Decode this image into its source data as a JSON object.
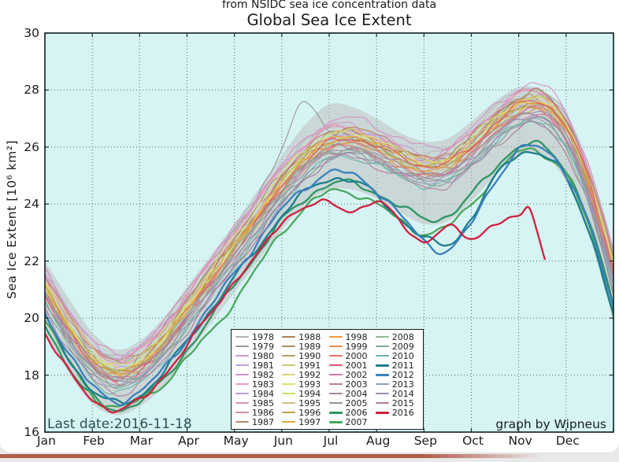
{
  "chart_data": {
    "type": "line",
    "title": "Global Sea Ice Extent",
    "subtitle": "from NSIDC sea ice concentration data",
    "ylabel": "Sea Ice Extent [10⁶ km²]",
    "ylim": [
      16,
      30
    ],
    "yticks": [
      16,
      18,
      20,
      22,
      24,
      26,
      28,
      30
    ],
    "xticklabels": [
      "Jan",
      "Feb",
      "Mar",
      "Apr",
      "May",
      "Jun",
      "Jul",
      "Aug",
      "Sep",
      "Oct",
      "Nov",
      "Dec"
    ],
    "grid": "dotted",
    "legend_position": "lower-center",
    "plot_bg": "#d7f4f4",
    "frame_color": "#1c2b2b",
    "annotations": {
      "last_date": "Last date:2016-11-18",
      "credit": "graph by Wipneus"
    },
    "sample_x": [
      0,
      0.5,
      1,
      1.5,
      2,
      2.5,
      3,
      3.5,
      4,
      4.5,
      5,
      5.5,
      6,
      6.5,
      7,
      7.5,
      8,
      8.5,
      9,
      9.5,
      10,
      10.5,
      11,
      11.5,
      12
    ],
    "base_cycle": [
      20.7,
      19.3,
      18.2,
      17.7,
      18.0,
      18.8,
      19.9,
      21.0,
      22.1,
      23.2,
      24.3,
      25.2,
      25.8,
      25.9,
      25.6,
      25.2,
      24.9,
      25.0,
      25.6,
      26.4,
      27.0,
      27.1,
      26.2,
      24.2,
      21.3
    ],
    "band": {
      "color": "#bfbfbf",
      "opacity": 0.55,
      "upper": [
        22.0,
        20.7,
        19.5,
        18.9,
        19.2,
        20.0,
        21.1,
        22.2,
        23.3,
        24.5,
        25.7,
        26.8,
        27.5,
        27.4,
        27.0,
        26.5,
        26.2,
        26.3,
        26.9,
        27.6,
        28.1,
        28.0,
        27.2,
        25.3,
        22.5
      ],
      "lower": [
        19.5,
        18.1,
        17.0,
        16.6,
        16.9,
        17.6,
        18.7,
        19.8,
        20.9,
        22.0,
        23.1,
        24.0,
        24.5,
        24.5,
        24.2,
        23.7,
        23.3,
        23.4,
        24.1,
        25.0,
        25.7,
        25.7,
        24.8,
        22.8,
        19.9
      ]
    },
    "series": [
      {
        "year": "1978",
        "color": "#b5b5b5",
        "bold": false,
        "offset": 1.0
      },
      {
        "year": "1979",
        "color": "#9a9a9a",
        "bold": false,
        "values": [
          21.4,
          20.1,
          18.9,
          18.5,
          18.8,
          19.6,
          20.7,
          21.8,
          23.0,
          24.4,
          25.9,
          27.6,
          26.6,
          26.2,
          26.0,
          25.6,
          25.4,
          25.5,
          26.1,
          26.9,
          27.4,
          27.4,
          26.6,
          24.6,
          21.9
        ]
      },
      {
        "year": "1980",
        "color": "#cf9ccf",
        "bold": false,
        "offset": 0.9
      },
      {
        "year": "1981",
        "color": "#c0a4da",
        "bold": false,
        "offset": 0.7
      },
      {
        "year": "1982",
        "color": "#d592c6",
        "bold": false,
        "offset": 1.0
      },
      {
        "year": "1983",
        "color": "#ef99cd",
        "bold": false,
        "offset": 0.8
      },
      {
        "year": "1984",
        "color": "#b99cd4",
        "bold": false,
        "offset": 0.6
      },
      {
        "year": "1985",
        "color": "#dc92b6",
        "bold": false,
        "offset": 0.7
      },
      {
        "year": "1986",
        "color": "#d892a2",
        "bold": false,
        "offset": 0.8
      },
      {
        "year": "1987",
        "color": "#bd8a69",
        "bold": false,
        "offset": 0.7
      },
      {
        "year": "1988",
        "color": "#ae7e53",
        "bold": false,
        "offset": 0.6
      },
      {
        "year": "1989",
        "color": "#a48c64",
        "bold": false,
        "offset": 0.5
      },
      {
        "year": "1990",
        "color": "#a9a45f",
        "bold": false,
        "offset": 0.4
      },
      {
        "year": "1991",
        "color": "#c9c76b",
        "bold": false,
        "offset": 0.5
      },
      {
        "year": "1992",
        "color": "#dcd87b",
        "bold": false,
        "offset": 0.6
      },
      {
        "year": "1993",
        "color": "#e2de6e",
        "bold": false,
        "offset": 0.5
      },
      {
        "year": "1994",
        "color": "#cede6f",
        "bold": false,
        "offset": 0.5
      },
      {
        "year": "1995",
        "color": "#cdbd81",
        "bold": false,
        "offset": 0.3
      },
      {
        "year": "1996",
        "color": "#bc9d4a",
        "bold": false,
        "offset": 0.4
      },
      {
        "year": "1997",
        "color": "#dcab3d",
        "bold": false,
        "offset": 0.3
      },
      {
        "year": "1998",
        "color": "#ec9b3b",
        "bold": false,
        "offset": 0.3
      },
      {
        "year": "1999",
        "color": "#e18b51",
        "bold": false,
        "offset": 0.2
      },
      {
        "year": "2000",
        "color": "#e6706b",
        "bold": false,
        "offset": 0.1
      },
      {
        "year": "2001",
        "color": "#dc5373",
        "bold": false,
        "offset": 0.3
      },
      {
        "year": "2002",
        "color": "#d277a7",
        "bold": false,
        "offset": 0.1
      },
      {
        "year": "2003",
        "color": "#ba809f",
        "bold": false,
        "offset": 0.2
      },
      {
        "year": "2004",
        "color": "#a08da0",
        "bold": false,
        "offset": 0.1
      },
      {
        "year": "2005",
        "color": "#979197",
        "bold": false,
        "offset": 0.0
      },
      {
        "year": "2006",
        "color": "#2e9464",
        "bold": true,
        "values": [
          19.8,
          18.3,
          17.2,
          16.8,
          17.1,
          17.8,
          18.9,
          20.0,
          21.2,
          22.3,
          23.4,
          24.2,
          24.7,
          24.7,
          24.4,
          23.9,
          23.5,
          23.6,
          24.3,
          25.3,
          26.0,
          26.0,
          25.2,
          23.3,
          20.4
        ]
      },
      {
        "year": "2007",
        "color": "#4aa85e",
        "bold": true,
        "values": [
          20.0,
          18.5,
          17.3,
          16.9,
          17.1,
          17.7,
          18.6,
          19.5,
          20.6,
          21.8,
          23.0,
          23.9,
          24.4,
          24.4,
          24.0,
          23.4,
          23.0,
          23.2,
          24.0,
          25.0,
          25.8,
          25.8,
          25.0,
          23.1,
          20.2
        ]
      },
      {
        "year": "2008",
        "color": "#94b894",
        "bold": false,
        "offset": -0.1
      },
      {
        "year": "2009",
        "color": "#80a896",
        "bold": false,
        "offset": -0.1
      },
      {
        "year": "2010",
        "color": "#69b5af",
        "bold": false,
        "offset": -0.3
      },
      {
        "year": "2011",
        "color": "#1e7e8d",
        "bold": true,
        "values": [
          20.0,
          18.6,
          17.5,
          17.0,
          17.3,
          18.1,
          19.2,
          20.3,
          21.4,
          22.5,
          23.6,
          24.4,
          24.9,
          24.8,
          24.3,
          23.5,
          22.8,
          22.6,
          23.5,
          24.9,
          25.8,
          25.7,
          24.9,
          23.0,
          20.1
        ]
      },
      {
        "year": "2012",
        "color": "#3b80bb",
        "bold": true,
        "values": [
          20.2,
          18.8,
          17.6,
          17.1,
          17.4,
          18.2,
          19.3,
          20.4,
          21.6,
          22.7,
          23.8,
          24.6,
          25.1,
          25.0,
          24.5,
          23.6,
          22.7,
          22.4,
          23.3,
          24.8,
          25.9,
          25.9,
          25.1,
          23.2,
          20.3
        ]
      },
      {
        "year": "2013",
        "color": "#8fa0b5",
        "bold": false,
        "offset": -0.1
      },
      {
        "year": "2014",
        "color": "#9d8dae",
        "bold": false,
        "offset": 0.0
      },
      {
        "year": "2015",
        "color": "#b17e9d",
        "bold": false,
        "offset": -0.4
      },
      {
        "year": "2016",
        "color": "#d02040",
        "bold": true,
        "x": [
          0,
          0.5,
          1,
          1.5,
          2,
          2.5,
          3,
          3.5,
          4,
          4.5,
          5,
          5.5,
          6,
          6.5,
          7,
          7.5,
          8,
          8.5,
          9,
          9.5,
          10,
          10.25,
          10.55
        ],
        "values": [
          19.5,
          18.1,
          17.2,
          16.75,
          17.1,
          18.0,
          19.0,
          20.2,
          21.3,
          22.2,
          23.4,
          23.9,
          24.0,
          23.8,
          24.05,
          23.4,
          22.7,
          23.15,
          22.85,
          23.3,
          23.5,
          23.85,
          22.1
        ]
      }
    ]
  }
}
